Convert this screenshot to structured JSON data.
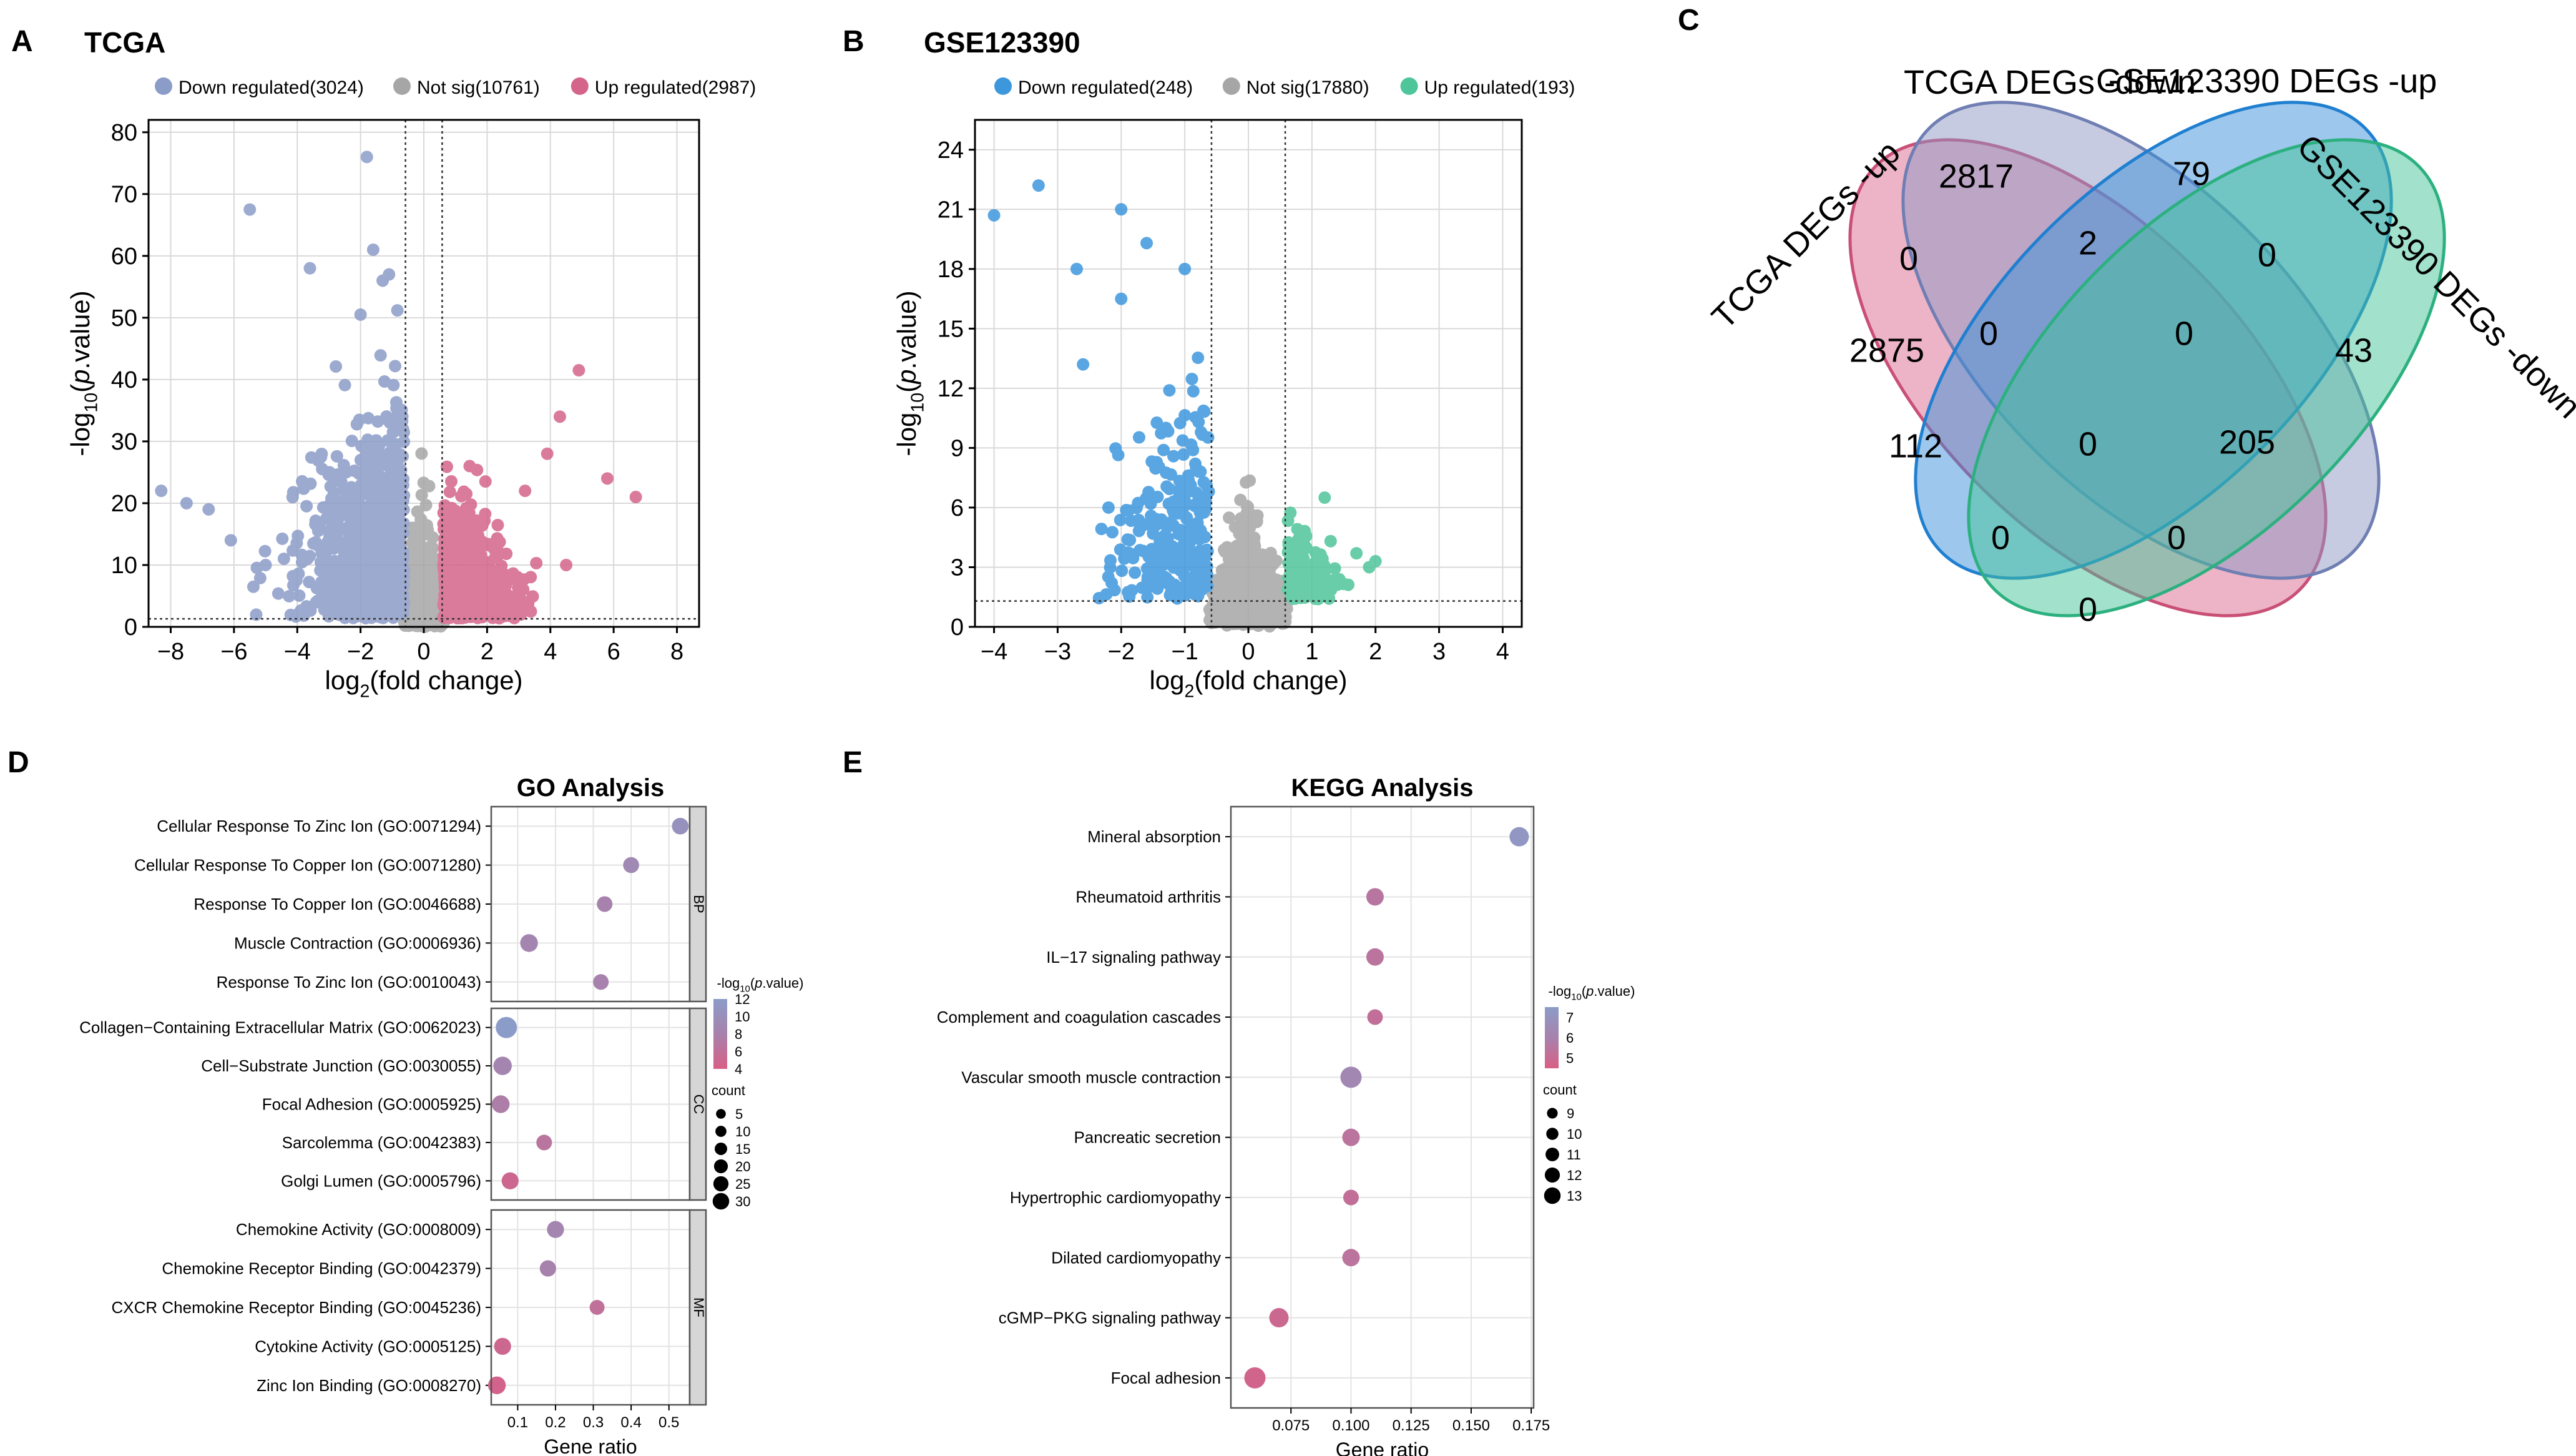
{
  "colors": {
    "down_blue": "#8B9CC8",
    "not_sig": "#A6A6A6",
    "up_pink": "#D4648A",
    "gse_down": "#3D97DD",
    "gse_up": "#4EC59A",
    "venn_pink": "#D9698E",
    "venn_lav": "#8E98C4",
    "venn_blue": "#3B8FDA",
    "venn_green": "#45C39A",
    "grad_high": "#8B9CC8",
    "grad_mid": "#A782AC",
    "grad_low": "#D85F86"
  },
  "chart_data": [
    {
      "id": "A",
      "panel_label": "A",
      "type": "scatter",
      "title": "TCGA",
      "legend": [
        "Down regulated(3024)",
        "Not sig(10761)",
        "Up regulated(2987)"
      ],
      "xlabel": "log2(fold change)",
      "ylabel": "-log10(p.value)",
      "xlim": [
        -8.7,
        8.7
      ],
      "ylim": [
        0,
        82
      ],
      "xticks": [
        -8,
        -6,
        -4,
        -2,
        0,
        2,
        4,
        6,
        8
      ],
      "yticks": [
        0,
        10,
        20,
        30,
        40,
        50,
        60,
        70,
        80
      ],
      "fc_cutoff": [
        -0.58,
        0.58
      ],
      "p_cutoff_y": 1.3,
      "counts": {
        "down": 3024,
        "not_sig": 10761,
        "up": 2987
      },
      "highlighted_points": [
        {
          "x": -1.8,
          "y": 76
        },
        {
          "x": -5.5,
          "y": 67.5
        },
        {
          "x": -1.6,
          "y": 61
        },
        {
          "x": -3.6,
          "y": 58
        },
        {
          "x": -1.3,
          "y": 56
        },
        {
          "x": -1.1,
          "y": 57
        },
        {
          "x": -2.0,
          "y": 50.5
        },
        {
          "x": -8.3,
          "y": 22
        },
        {
          "x": -7.5,
          "y": 20
        },
        {
          "x": -6.8,
          "y": 19
        },
        {
          "x": -6.1,
          "y": 14
        },
        {
          "x": -5.0,
          "y": 10
        },
        {
          "x": 4.9,
          "y": 41.5
        },
        {
          "x": 4.3,
          "y": 34
        },
        {
          "x": 6.7,
          "y": 21
        },
        {
          "x": 5.8,
          "y": 24
        },
        {
          "x": 3.9,
          "y": 28
        },
        {
          "x": 4.5,
          "y": 10
        },
        {
          "x": 3.2,
          "y": 22
        }
      ]
    },
    {
      "id": "B",
      "panel_label": "B",
      "type": "scatter",
      "title": "GSE123390",
      "legend": [
        "Down regulated(248)",
        "Not sig(17880)",
        "Up regulated(193)"
      ],
      "xlabel": "log2(fold change)",
      "ylabel": "-log10(p.value)",
      "xlim": [
        -4.3,
        4.3
      ],
      "ylim": [
        0,
        25.5
      ],
      "xticks": [
        -4,
        -3,
        -2,
        -1,
        0,
        1,
        2,
        3,
        4
      ],
      "yticks": [
        0,
        3,
        6,
        9,
        12,
        15,
        18,
        21,
        24
      ],
      "fc_cutoff": [
        -0.58,
        0.58
      ],
      "p_cutoff_y": 1.3,
      "counts": {
        "down": 248,
        "not_sig": 17880,
        "up": 193
      },
      "highlighted_points": [
        {
          "x": -4.0,
          "y": 20.7
        },
        {
          "x": -3.3,
          "y": 22.2
        },
        {
          "x": -2.0,
          "y": 21.0
        },
        {
          "x": -2.7,
          "y": 18.0
        },
        {
          "x": -1.6,
          "y": 19.3
        },
        {
          "x": -2.0,
          "y": 16.5
        },
        {
          "x": -2.6,
          "y": 13.2
        },
        {
          "x": -1.0,
          "y": 18.0
        },
        {
          "x": -2.2,
          "y": 6.0
        },
        {
          "x": 1.9,
          "y": 3.0
        },
        {
          "x": 2.0,
          "y": 3.3
        },
        {
          "x": 1.7,
          "y": 3.7
        },
        {
          "x": 1.2,
          "y": 6.5
        }
      ]
    },
    {
      "id": "C",
      "panel_label": "C",
      "type": "venn",
      "sets": [
        "TCGA DEGs -up",
        "TCGA DEGs -down",
        "GSE123390 DEGs -up",
        "GSE123390 DEGs -down"
      ],
      "regions": [
        {
          "sets": [
            "TCGA DEGs -up"
          ],
          "value": 2875
        },
        {
          "sets": [
            "TCGA DEGs -down"
          ],
          "value": 2817
        },
        {
          "sets": [
            "GSE123390 DEGs -up"
          ],
          "value": 79
        },
        {
          "sets": [
            "GSE123390 DEGs -down"
          ],
          "value": 43
        },
        {
          "sets": [
            "TCGA DEGs -up",
            "TCGA DEGs -down"
          ],
          "value": 0
        },
        {
          "sets": [
            "TCGA DEGs -down",
            "GSE123390 DEGs -up"
          ],
          "value": 2
        },
        {
          "sets": [
            "GSE123390 DEGs -up",
            "GSE123390 DEGs -down"
          ],
          "value": 0
        },
        {
          "sets": [
            "TCGA DEGs -up",
            "GSE123390 DEGs -up"
          ],
          "value": 112
        },
        {
          "sets": [
            "TCGA DEGs -down",
            "GSE123390 DEGs -down"
          ],
          "value": 205
        },
        {
          "sets": [
            "TCGA DEGs -up",
            "GSE123390 DEGs -down"
          ],
          "value": 0
        },
        {
          "sets": [
            "TCGA DEGs -up",
            "TCGA DEGs -down",
            "GSE123390 DEGs -up"
          ],
          "value": 0
        },
        {
          "sets": [
            "TCGA DEGs -down",
            "GSE123390 DEGs -up",
            "GSE123390 DEGs -down"
          ],
          "value": 0
        },
        {
          "sets": [
            "TCGA DEGs -up",
            "TCGA DEGs -down",
            "GSE123390 DEGs -down"
          ],
          "value": 0
        },
        {
          "sets": [
            "TCGA DEGs -up",
            "GSE123390 DEGs -up",
            "GSE123390 DEGs -down"
          ],
          "value": 0
        },
        {
          "sets": [
            "TCGA DEGs -up",
            "TCGA DEGs -down",
            "GSE123390 DEGs -up",
            "GSE123390 DEGs -down"
          ],
          "value": 0
        }
      ]
    },
    {
      "id": "D",
      "panel_label": "D",
      "type": "scatter",
      "title": "GO Analysis",
      "xlabel": "Gene ratio",
      "xlim": [
        0.03,
        0.555
      ],
      "xticks": [
        0.1,
        0.2,
        0.3,
        0.4,
        0.5
      ],
      "xticklabels": [
        "0.1",
        "0.2",
        "0.3",
        "0.4",
        "0.5"
      ],
      "color_legend_title": "-log10(p.value)",
      "color_range": [
        4,
        12
      ],
      "color_ticks": [
        12,
        10,
        8,
        6,
        4
      ],
      "size_legend_title": "count",
      "size_ticks": [
        5,
        10,
        15,
        20,
        25,
        30
      ],
      "facets": [
        {
          "name": "BP",
          "terms": [
            {
              "term": "Cellular Response To Zinc Ion (GO:0071294)",
              "ratio": 0.53,
              "logp": 10.5,
              "count": 17
            },
            {
              "term": "Cellular Response To Copper Ion (GO:0071280)",
              "ratio": 0.4,
              "logp": 9.0,
              "count": 15
            },
            {
              "term": "Response To Copper Ion (GO:0046688)",
              "ratio": 0.33,
              "logp": 8.0,
              "count": 14
            },
            {
              "term": "Muscle Contraction (GO:0006936)",
              "ratio": 0.13,
              "logp": 8.5,
              "count": 20
            },
            {
              "term": "Response To Zinc Ion (GO:0010043)",
              "ratio": 0.32,
              "logp": 8.0,
              "count": 14
            }
          ]
        },
        {
          "name": "CC",
          "terms": [
            {
              "term": "Collagen−Containing Extracellular Matrix (GO:0062023)",
              "ratio": 0.07,
              "logp": 12.0,
              "count": 30
            },
            {
              "term": "Cell−Substrate Junction (GO:0030055)",
              "ratio": 0.06,
              "logp": 8.5,
              "count": 22
            },
            {
              "term": "Focal Adhesion (GO:0005925)",
              "ratio": 0.055,
              "logp": 7.5,
              "count": 20
            },
            {
              "term": "Sarcolemma (GO:0042383)",
              "ratio": 0.17,
              "logp": 6.5,
              "count": 14
            },
            {
              "term": "Golgi Lumen (GO:0005796)",
              "ratio": 0.08,
              "logp": 5.0,
              "count": 18
            }
          ]
        },
        {
          "name": "MF",
          "terms": [
            {
              "term": "Chemokine Activity (GO:0008009)",
              "ratio": 0.2,
              "logp": 8.5,
              "count": 18
            },
            {
              "term": "Chemokine Receptor Binding (GO:0042379)",
              "ratio": 0.18,
              "logp": 8.0,
              "count": 16
            },
            {
              "term": "CXCR Chemokine Receptor Binding (GO:0045236)",
              "ratio": 0.31,
              "logp": 6.0,
              "count": 12
            },
            {
              "term": "Cytokine Activity (GO:0005125)",
              "ratio": 0.06,
              "logp": 5.0,
              "count": 18
            },
            {
              "term": "Zinc Ion Binding (GO:0008270)",
              "ratio": 0.045,
              "logp": 4.5,
              "count": 20
            }
          ]
        }
      ]
    },
    {
      "id": "E",
      "panel_label": "E",
      "type": "scatter",
      "title": "KEGG Analysis",
      "xlabel": "Gene ratio",
      "xlim": [
        0.05,
        0.176
      ],
      "xticks": [
        0.075,
        0.1,
        0.125,
        0.15,
        0.175
      ],
      "xticklabels": [
        "0.075",
        "0.100",
        "0.125",
        "0.150",
        "0.175"
      ],
      "color_legend_title": "-log10(p.value)",
      "color_range": [
        4.5,
        7.5
      ],
      "color_ticks": [
        7,
        6,
        5
      ],
      "size_legend_title": "count",
      "size_ticks": [
        9,
        10,
        11,
        12,
        13
      ],
      "terms": [
        {
          "term": "Mineral absorption",
          "ratio": 0.17,
          "logp": 7.2,
          "count": 12
        },
        {
          "term": "Rheumatoid arthritis",
          "ratio": 0.11,
          "logp": 5.5,
          "count": 11
        },
        {
          "term": "IL−17 signaling pathway",
          "ratio": 0.11,
          "logp": 5.4,
          "count": 11
        },
        {
          "term": "Complement and coagulation cascades",
          "ratio": 0.11,
          "logp": 5.2,
          "count": 10
        },
        {
          "term": "Vascular smooth muscle contraction",
          "ratio": 0.1,
          "logp": 6.3,
          "count": 13
        },
        {
          "term": "Pancreatic secretion",
          "ratio": 0.1,
          "logp": 5.4,
          "count": 11
        },
        {
          "term": "Hypertrophic cardiomyopathy",
          "ratio": 0.1,
          "logp": 5.2,
          "count": 10
        },
        {
          "term": "Dilated cardiomyopathy",
          "ratio": 0.1,
          "logp": 5.4,
          "count": 11
        },
        {
          "term": "cGMP−PKG signaling pathway",
          "ratio": 0.07,
          "logp": 4.9,
          "count": 12
        },
        {
          "term": "Focal adhesion",
          "ratio": 0.06,
          "logp": 4.7,
          "count": 13
        }
      ]
    }
  ]
}
